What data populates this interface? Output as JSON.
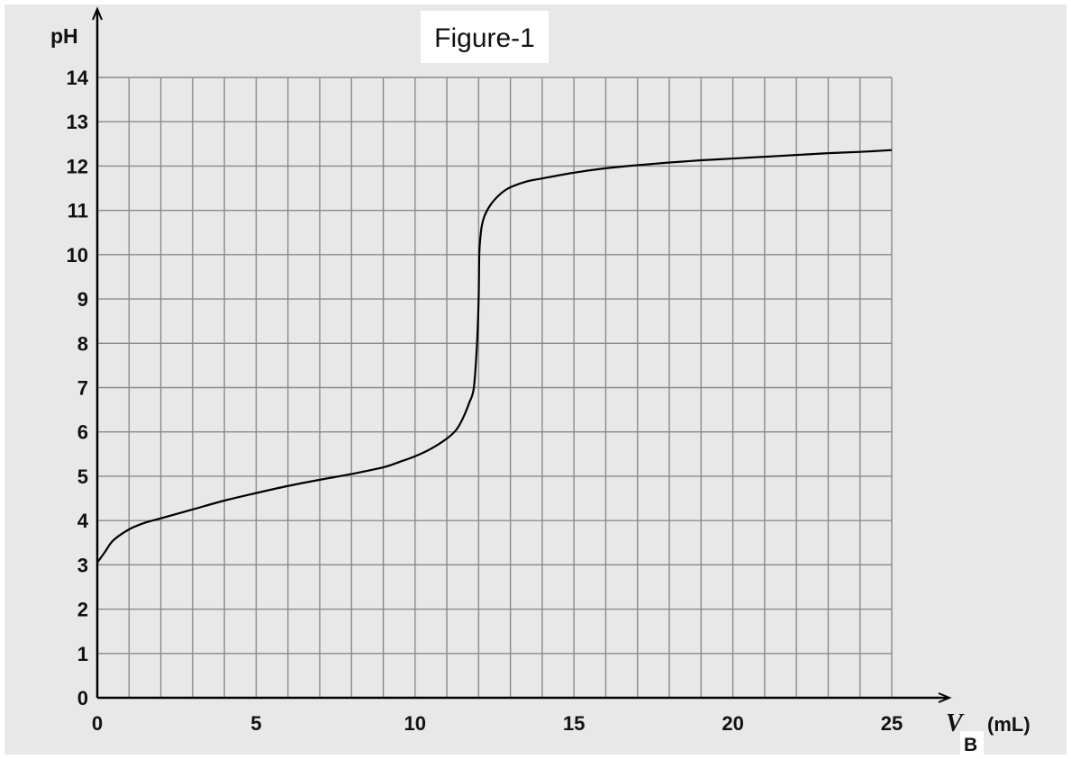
{
  "chart_data": {
    "type": "line",
    "title": "Figure-1",
    "ylabel": "pH",
    "xlabel": {
      "main": "V",
      "subscript": "B",
      "unit": "(mL)"
    },
    "xlim": [
      0,
      25
    ],
    "ylim": [
      0,
      14
    ],
    "grid": true,
    "x_major_ticks": [
      0,
      5,
      10,
      15,
      20,
      25
    ],
    "y_ticks": [
      0,
      1,
      2,
      3,
      4,
      5,
      6,
      7,
      8,
      9,
      10,
      11,
      12,
      13,
      14
    ],
    "grid_x_step": 1,
    "grid_y_step": 1,
    "series": [
      {
        "x": [
          0,
          0.25,
          0.5,
          1,
          1.5,
          2,
          3,
          4,
          5,
          6,
          7,
          8,
          9,
          9.5,
          10,
          10.5,
          11,
          11.3,
          11.5,
          11.7,
          11.85,
          11.95,
          12,
          12.02,
          12.05,
          12.1,
          12.2,
          12.4,
          12.7,
          13,
          13.5,
          14,
          15,
          16,
          17,
          18,
          19,
          20,
          21,
          22,
          23,
          24,
          25
        ],
        "y": [
          3.05,
          3.3,
          3.55,
          3.8,
          3.95,
          4.05,
          4.25,
          4.45,
          4.62,
          4.78,
          4.92,
          5.05,
          5.2,
          5.32,
          5.45,
          5.62,
          5.85,
          6.05,
          6.3,
          6.65,
          7.0,
          8.0,
          9.0,
          10.0,
          10.35,
          10.65,
          10.9,
          11.15,
          11.38,
          11.52,
          11.65,
          11.72,
          11.85,
          11.95,
          12.02,
          12.08,
          12.13,
          12.17,
          12.21,
          12.25,
          12.29,
          12.32,
          12.36
        ]
      }
    ]
  }
}
